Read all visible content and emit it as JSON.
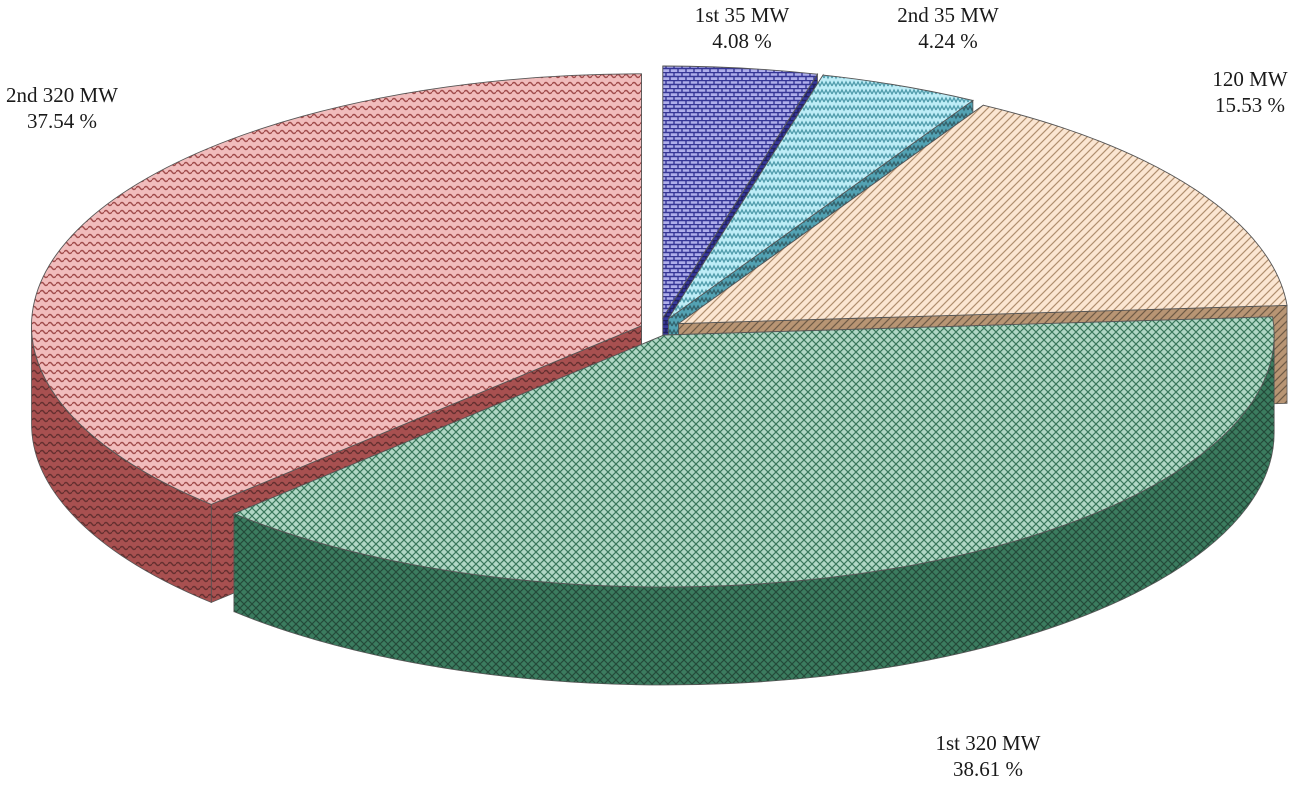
{
  "chart_data": {
    "type": "pie",
    "style": "3d-exploded",
    "title": "",
    "slices": [
      {
        "name": "1st 35 MW",
        "value": 4.08,
        "value_label": "4.08 %",
        "color": "#4a4ad0",
        "pattern": "bricks"
      },
      {
        "name": "2nd 35 MW",
        "value": 4.24,
        "value_label": "4.24 %",
        "color": "#6fd8ee",
        "pattern": "zigzag"
      },
      {
        "name": "120 MW",
        "value": 15.53,
        "value_label": "15.53 %",
        "color": "#f5c79a",
        "pattern": "diagonal"
      },
      {
        "name": "1st 320 MW",
        "value": 38.61,
        "value_label": "38.61 %",
        "color": "#4fa57f",
        "pattern": "checker"
      },
      {
        "name": "2nd 320 MW",
        "value": 37.54,
        "value_label": "37.54 %",
        "color": "#e06a6a",
        "pattern": "wave"
      }
    ]
  }
}
